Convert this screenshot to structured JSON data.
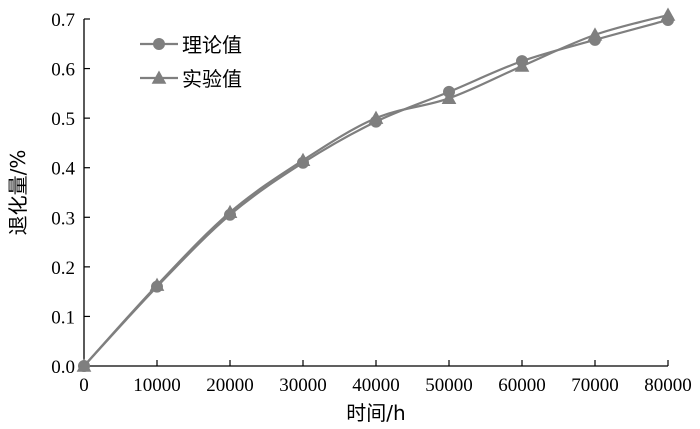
{
  "chart_data": {
    "type": "line",
    "title": "",
    "xlabel": "时间/h",
    "ylabel": "退化量/%",
    "xlim": [
      0,
      80000
    ],
    "ylim": [
      0.0,
      0.7
    ],
    "x_ticks": [
      "0",
      "10000",
      "20000",
      "30000",
      "40000",
      "50000",
      "60000",
      "70000",
      "80000"
    ],
    "y_ticks": [
      "0.0",
      "0.1",
      "0.2",
      "0.3",
      "0.4",
      "0.5",
      "0.6",
      "0.7"
    ],
    "grid": false,
    "legend_position": "top-left",
    "x": [
      0,
      10000,
      20000,
      30000,
      40000,
      50000,
      60000,
      70000,
      80000
    ],
    "series": [
      {
        "name": "理论值",
        "marker": "circle",
        "color": "#7f7f7f",
        "values": [
          0.0,
          0.16,
          0.305,
          0.41,
          0.493,
          0.553,
          0.615,
          0.658,
          0.698
        ]
      },
      {
        "name": "实验值",
        "marker": "triangle",
        "color": "#7f7f7f",
        "values": [
          0.0,
          0.163,
          0.31,
          0.415,
          0.5,
          0.54,
          0.605,
          0.668,
          0.708
        ]
      }
    ]
  }
}
